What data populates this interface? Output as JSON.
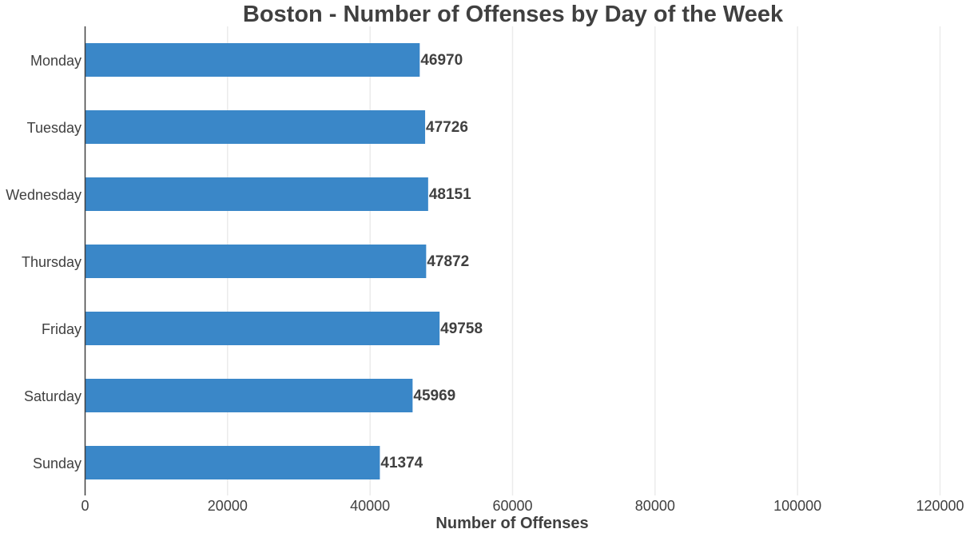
{
  "chart_data": {
    "type": "bar",
    "orientation": "horizontal",
    "title": "Boston - Number of Offenses by Day of the Week",
    "xlabel": "Number of Offenses",
    "ylabel": "",
    "categories": [
      "Monday",
      "Tuesday",
      "Wednesday",
      "Thursday",
      "Friday",
      "Saturday",
      "Sunday"
    ],
    "values": [
      46970,
      47726,
      48151,
      47872,
      49758,
      45969,
      41374
    ],
    "data_labels": [
      "46970",
      "47726",
      "48151",
      "47872",
      "49758",
      "45969",
      "41374"
    ],
    "xlim": [
      0,
      120000
    ],
    "x_ticks": [
      0,
      20000,
      40000,
      60000,
      80000,
      100000,
      120000
    ],
    "x_tick_labels": [
      "0",
      "20000",
      "40000",
      "60000",
      "80000",
      "100000",
      "120000"
    ],
    "grid": "vertical",
    "legend": "none",
    "colors": {
      "bar": "#3a87c8",
      "grid": "#ebebeb",
      "axis": "#404040",
      "text": "#404040"
    }
  }
}
